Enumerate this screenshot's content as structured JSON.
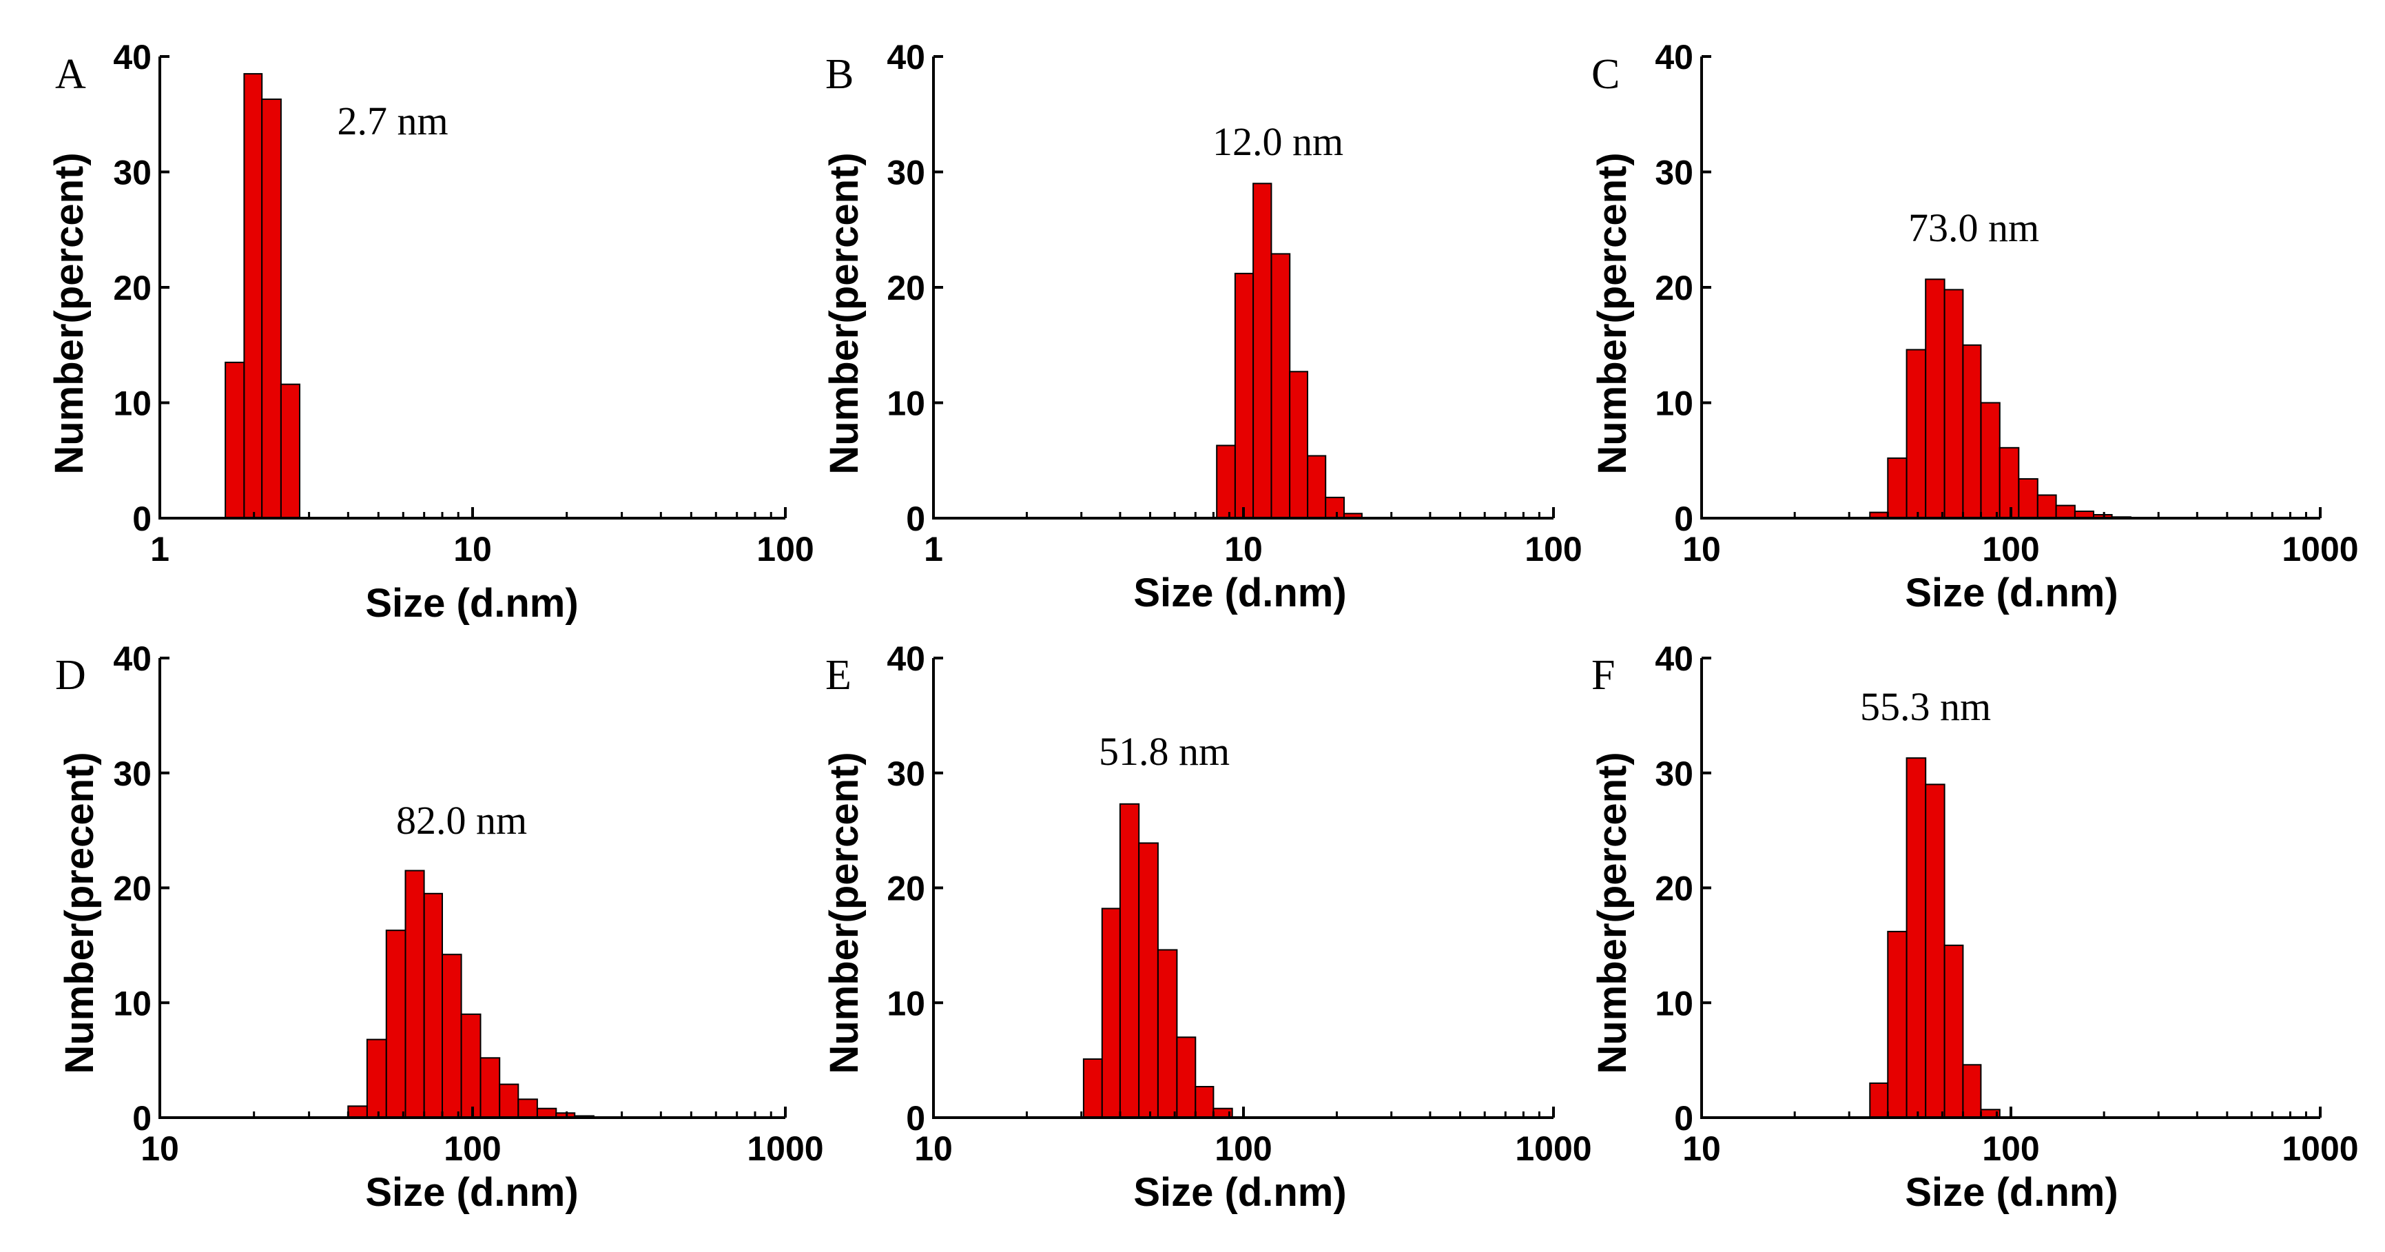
{
  "chart_data": [
    {
      "type": "bar",
      "panel": "A",
      "peak_label": "2.7 nm",
      "xlabel": "Size (d.nm)",
      "ylabel": "Number(percent)",
      "xscale": "log",
      "xlim": [
        1,
        100
      ],
      "ylim": [
        0,
        40
      ],
      "xticks": [
        "1",
        "10",
        "100"
      ],
      "yticks": [
        "0",
        "10",
        "20",
        "30",
        "40"
      ],
      "bin_edges": [
        1.62,
        1.86,
        2.12,
        2.44,
        2.8
      ],
      "values": [
        13.5,
        38.5,
        36.3,
        11.6
      ]
    },
    {
      "type": "bar",
      "panel": "B",
      "peak_label": "12.0 nm",
      "xlabel": "Size (d.nm)",
      "ylabel": "Number(percent)",
      "xscale": "log",
      "xlim": [
        1,
        100
      ],
      "ylim": [
        0,
        40
      ],
      "xticks": [
        "1",
        "10",
        "100"
      ],
      "yticks": [
        "0",
        "10",
        "20",
        "30",
        "40"
      ],
      "bin_edges": [
        8.2,
        9.4,
        10.75,
        12.3,
        14.1,
        16.1,
        18.4,
        21.1,
        24.1
      ],
      "values": [
        6.3,
        21.2,
        29.0,
        22.9,
        12.7,
        5.4,
        1.8,
        0.4
      ]
    },
    {
      "type": "bar",
      "panel": "C",
      "peak_label": "73.0 nm",
      "xlabel": "Size (d.nm)",
      "ylabel": "Number(percent)",
      "xscale": "log",
      "xlim": [
        10,
        1000
      ],
      "ylim": [
        0,
        40
      ],
      "xticks": [
        "10",
        "100",
        "1000"
      ],
      "yticks": [
        "0",
        "10",
        "20",
        "30",
        "40"
      ],
      "bin_edges": [
        35,
        40,
        46,
        53,
        61,
        70,
        80,
        92,
        106,
        122,
        140,
        161,
        185,
        212,
        244,
        280
      ],
      "values": [
        0.5,
        5.2,
        14.6,
        20.7,
        19.8,
        15.0,
        10.0,
        6.1,
        3.4,
        2.0,
        1.1,
        0.6,
        0.3,
        0.1,
        0.05
      ]
    },
    {
      "type": "bar",
      "panel": "D",
      "peak_label": "82.0 nm",
      "xlabel": "Size (d.nm)",
      "ylabel": "Number(precent)",
      "xscale": "log",
      "xlim": [
        10,
        1000
      ],
      "ylim": [
        0,
        40
      ],
      "xticks": [
        "10",
        "100",
        "1000"
      ],
      "yticks": [
        "0",
        "10",
        "20",
        "30",
        "40"
      ],
      "bin_edges": [
        40,
        46,
        53,
        61,
        70,
        80,
        92,
        106,
        122,
        140,
        161,
        185,
        212,
        244,
        280
      ],
      "values": [
        1.0,
        6.8,
        16.3,
        21.5,
        19.5,
        14.2,
        9.0,
        5.2,
        2.9,
        1.6,
        0.8,
        0.4,
        0.15,
        0.05
      ]
    },
    {
      "type": "bar",
      "panel": "E",
      "peak_label": "51.8 nm",
      "xlabel": "Size (d.nm)",
      "ylabel": "Number(percent)",
      "xscale": "log",
      "xlim": [
        10,
        1000
      ],
      "ylim": [
        0,
        40
      ],
      "xticks": [
        "10",
        "100",
        "1000"
      ],
      "yticks": [
        "0",
        "10",
        "20",
        "30",
        "40"
      ],
      "bin_edges": [
        30.5,
        35,
        40,
        46,
        53,
        61,
        70,
        80,
        92
      ],
      "values": [
        5.1,
        18.2,
        27.3,
        23.9,
        14.6,
        7.0,
        2.7,
        0.8
      ]
    },
    {
      "type": "bar",
      "panel": "F",
      "peak_label": "55.3 nm",
      "xlabel": "Size (d.nm)",
      "ylabel": "Number(percent)",
      "xscale": "log",
      "xlim": [
        10,
        1000
      ],
      "ylim": [
        0,
        40
      ],
      "xticks": [
        "10",
        "100",
        "1000"
      ],
      "yticks": [
        "0",
        "10",
        "20",
        "30",
        "40"
      ],
      "bin_edges": [
        35,
        40,
        46,
        53,
        61,
        70,
        80,
        92
      ],
      "values": [
        3.0,
        16.2,
        31.3,
        29.0,
        15.0,
        4.6,
        0.7
      ]
    }
  ]
}
